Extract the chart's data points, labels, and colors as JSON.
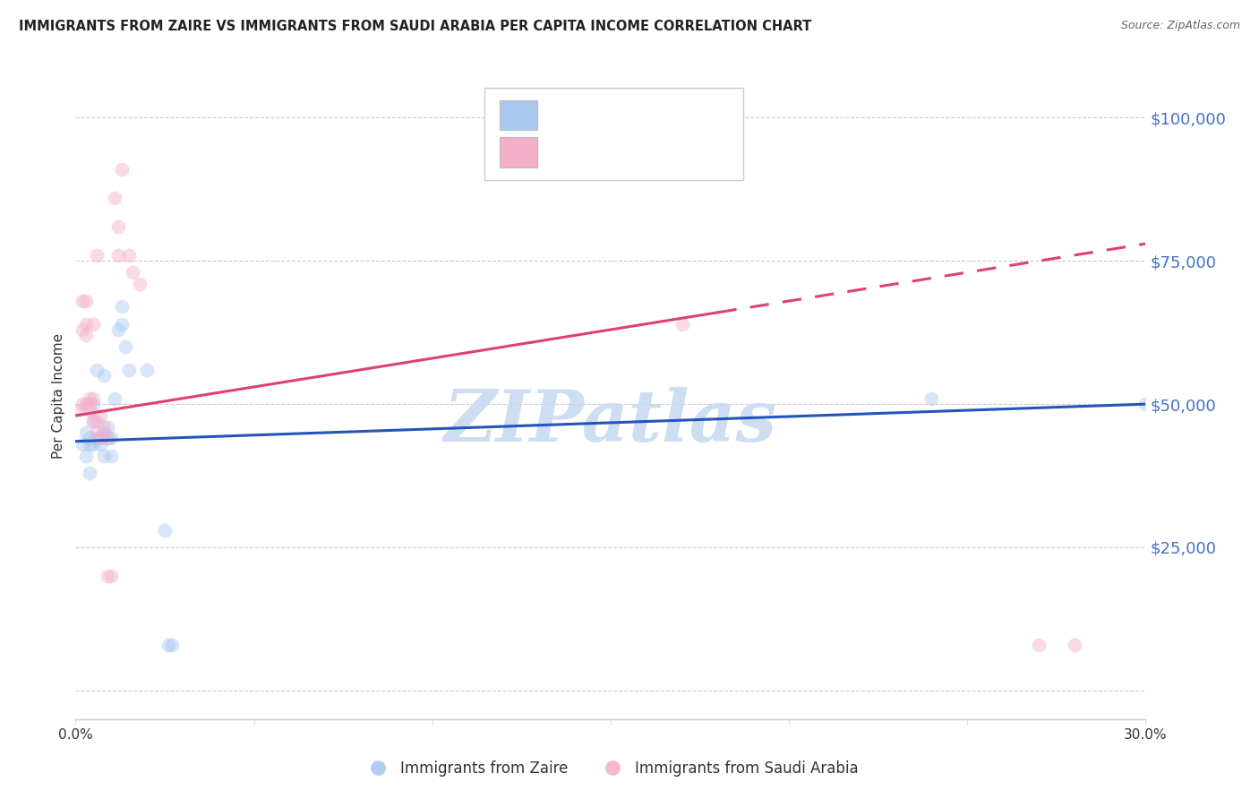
{
  "title": "IMMIGRANTS FROM ZAIRE VS IMMIGRANTS FROM SAUDI ARABIA PER CAPITA INCOME CORRELATION CHART",
  "source": "Source: ZipAtlas.com",
  "ylabel": "Per Capita Income",
  "yticks": [
    0,
    25000,
    50000,
    75000,
    100000
  ],
  "xlim": [
    0.0,
    0.3
  ],
  "ylim": [
    -5000,
    108000
  ],
  "blue_scatter": [
    [
      0.002,
      43000
    ],
    [
      0.003,
      41000
    ],
    [
      0.003,
      45000
    ],
    [
      0.004,
      44000
    ],
    [
      0.004,
      38000
    ],
    [
      0.004,
      43000
    ],
    [
      0.005,
      47000
    ],
    [
      0.005,
      50000
    ],
    [
      0.005,
      43000
    ],
    [
      0.006,
      56000
    ],
    [
      0.006,
      44000
    ],
    [
      0.007,
      44000
    ],
    [
      0.007,
      43000
    ],
    [
      0.008,
      45000
    ],
    [
      0.008,
      41000
    ],
    [
      0.008,
      55000
    ],
    [
      0.009,
      44000
    ],
    [
      0.009,
      46000
    ],
    [
      0.01,
      44000
    ],
    [
      0.01,
      41000
    ],
    [
      0.011,
      51000
    ],
    [
      0.012,
      63000
    ],
    [
      0.013,
      67000
    ],
    [
      0.013,
      64000
    ],
    [
      0.014,
      60000
    ],
    [
      0.015,
      56000
    ],
    [
      0.02,
      56000
    ],
    [
      0.025,
      28000
    ],
    [
      0.026,
      8000
    ],
    [
      0.027,
      8000
    ],
    [
      0.24,
      51000
    ],
    [
      0.3,
      50000
    ]
  ],
  "pink_scatter": [
    [
      0.001,
      49000
    ],
    [
      0.002,
      63000
    ],
    [
      0.002,
      68000
    ],
    [
      0.002,
      50000
    ],
    [
      0.003,
      62000
    ],
    [
      0.003,
      64000
    ],
    [
      0.003,
      68000
    ],
    [
      0.003,
      50000
    ],
    [
      0.004,
      50000
    ],
    [
      0.004,
      49000
    ],
    [
      0.004,
      51000
    ],
    [
      0.005,
      47000
    ],
    [
      0.005,
      64000
    ],
    [
      0.005,
      51000
    ],
    [
      0.006,
      76000
    ],
    [
      0.006,
      47000
    ],
    [
      0.006,
      45000
    ],
    [
      0.007,
      48000
    ],
    [
      0.007,
      44000
    ],
    [
      0.008,
      46000
    ],
    [
      0.009,
      44000
    ],
    [
      0.009,
      20000
    ],
    [
      0.01,
      20000
    ],
    [
      0.011,
      86000
    ],
    [
      0.012,
      81000
    ],
    [
      0.012,
      76000
    ],
    [
      0.013,
      91000
    ],
    [
      0.015,
      76000
    ],
    [
      0.016,
      73000
    ],
    [
      0.018,
      71000
    ],
    [
      0.17,
      64000
    ],
    [
      0.27,
      8000
    ],
    [
      0.28,
      8000
    ]
  ],
  "blue_line": {
    "x0": 0.0,
    "y0": 43500,
    "x1": 0.3,
    "y1": 50000
  },
  "pink_line": {
    "x0": 0.0,
    "y0": 48000,
    "x1": 0.3,
    "y1": 78000
  },
  "pink_line_solid_end": 0.18,
  "background_color": "#ffffff",
  "grid_color": "#cccccc",
  "title_color": "#222222",
  "axis_label_color": "#333333",
  "ytick_color": "#4472c4",
  "watermark_color": "#c5d8f0",
  "watermark": "ZIPatlas",
  "scatter_size": 130,
  "scatter_alpha": 0.45,
  "blue_color": "#a8c8f0",
  "pink_color": "#f4afc8",
  "blue_line_color": "#2255bb",
  "pink_line_color": "#e04070",
  "legend_box_color": "#dddddd",
  "legend_text_blue": "#4472c4",
  "legend_r_color": "#222222",
  "legend_n_color": "#4472c4"
}
